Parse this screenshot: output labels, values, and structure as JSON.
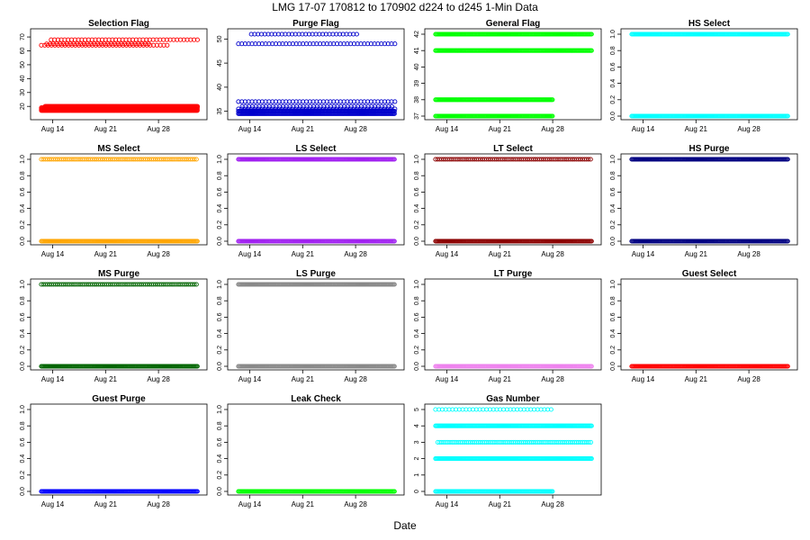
{
  "title": "LMG   17-07    170812 to 170902    d224 to d245   1-Min Data",
  "xlabel": "Date",
  "chart_data": [
    {
      "type": "scatter",
      "title": "Selection Flag",
      "color": "#ff0000",
      "ylim": [
        13,
        72
      ],
      "yticks": [
        20,
        30,
        40,
        50,
        60,
        70
      ],
      "ytick_labels": [
        "20",
        "30",
        "40",
        "50",
        "60",
        "70"
      ],
      "levels": [
        {
          "y": 17,
          "x_start": 12.5,
          "x_end": 33.2,
          "density": "dense"
        },
        {
          "y": 18,
          "x_start": 12.5,
          "x_end": 33.2,
          "density": "dense"
        },
        {
          "y": 19,
          "x_start": 12.5,
          "x_end": 33.2,
          "density": "dense"
        },
        {
          "y": 20,
          "x_start": 13,
          "x_end": 33.2,
          "density": "dense"
        },
        {
          "y": 64,
          "x_start": 12.5,
          "x_end": 29.5,
          "density": "sparse"
        },
        {
          "y": 65,
          "x_start": 13.2,
          "x_end": 27,
          "density": "sparse"
        },
        {
          "y": 68,
          "x_start": 13.8,
          "x_end": 33.2,
          "density": "sparse"
        }
      ],
      "x_ticks": [
        14,
        21,
        28
      ],
      "x_tick_labels": [
        "Aug 14",
        "Aug 21",
        "Aug 28"
      ]
    },
    {
      "type": "scatter",
      "title": "Purge Flag",
      "color": "#0000cc",
      "ylim": [
        34,
        51
      ],
      "yticks": [
        35,
        40,
        45,
        50
      ],
      "ytick_labels": [
        "35",
        "40",
        "45",
        "50"
      ],
      "levels": [
        {
          "y": 34.5,
          "x_start": 12.5,
          "x_end": 33.2,
          "density": "dense"
        },
        {
          "y": 35,
          "x_start": 12.5,
          "x_end": 33.2,
          "density": "dense"
        },
        {
          "y": 35.5,
          "x_start": 12.5,
          "x_end": 33.2,
          "density": "sparse"
        },
        {
          "y": 36,
          "x_start": 13,
          "x_end": 33.2,
          "density": "sparse"
        },
        {
          "y": 37,
          "x_start": 12.5,
          "x_end": 33.2,
          "density": "sparse"
        },
        {
          "y": 49,
          "x_start": 12.5,
          "x_end": 33.2,
          "density": "sparse"
        },
        {
          "y": 51,
          "x_start": 14.2,
          "x_end": 28.2,
          "density": "sparse"
        }
      ],
      "x_ticks": [
        14,
        21,
        28
      ],
      "x_tick_labels": [
        "Aug 14",
        "Aug 21",
        "Aug 28"
      ]
    },
    {
      "type": "scatter",
      "title": "General Flag",
      "color": "#00ff00",
      "ylim": [
        37,
        42
      ],
      "yticks": [
        37,
        38,
        39,
        40,
        41,
        42
      ],
      "ytick_labels": [
        "37",
        "38",
        "39",
        "40",
        "41",
        "42"
      ],
      "levels": [
        {
          "y": 37,
          "x_start": 12.5,
          "x_end": 28,
          "density": "dense"
        },
        {
          "y": 38,
          "x_start": 12.5,
          "x_end": 28,
          "density": "dense"
        },
        {
          "y": 41,
          "x_start": 12.5,
          "x_end": 33.2,
          "density": "dense"
        },
        {
          "y": 42,
          "x_start": 12.5,
          "x_end": 33.2,
          "density": "dense"
        }
      ],
      "x_ticks": [
        14,
        21,
        28
      ],
      "x_tick_labels": [
        "Aug 14",
        "Aug 21",
        "Aug 28"
      ]
    },
    {
      "type": "scatter",
      "title": "HS Select",
      "color": "#00ffff",
      "ylim": [
        0,
        1
      ],
      "yticks": [
        0,
        0.2,
        0.4,
        0.6,
        0.8,
        1.0
      ],
      "ytick_labels": [
        "0.0",
        "0.2",
        "0.4",
        "0.6",
        "0.8",
        "1.0"
      ],
      "levels": [
        {
          "y": 0,
          "x_start": 12.5,
          "x_end": 33.2,
          "density": "dense"
        },
        {
          "y": 1,
          "x_start": 12.5,
          "x_end": 33.2,
          "density": "dense"
        }
      ],
      "x_ticks": [
        14,
        21,
        28
      ],
      "x_tick_labels": [
        "Aug 14",
        "Aug 21",
        "Aug 28"
      ]
    },
    {
      "type": "scatter",
      "title": "MS Select",
      "color": "#ffa500",
      "ylim": [
        0,
        1
      ],
      "yticks": [
        0,
        0.2,
        0.4,
        0.6,
        0.8,
        1.0
      ],
      "ytick_labels": [
        "0.0",
        "0.2",
        "0.4",
        "0.6",
        "0.8",
        "1.0"
      ],
      "levels": [
        {
          "y": 0,
          "x_start": 12.5,
          "x_end": 33.2,
          "density": "dense"
        },
        {
          "y": 1,
          "x_start": 12.5,
          "x_end": 33.2,
          "density": "medium"
        }
      ],
      "x_ticks": [
        14,
        21,
        28
      ],
      "x_tick_labels": [
        "Aug 14",
        "Aug 21",
        "Aug 28"
      ]
    },
    {
      "type": "scatter",
      "title": "LS Select",
      "color": "#a020f0",
      "ylim": [
        0,
        1
      ],
      "yticks": [
        0,
        0.2,
        0.4,
        0.6,
        0.8,
        1.0
      ],
      "ytick_labels": [
        "0.0",
        "0.2",
        "0.4",
        "0.6",
        "0.8",
        "1.0"
      ],
      "levels": [
        {
          "y": 0,
          "x_start": 12.5,
          "x_end": 33.2,
          "density": "dense"
        },
        {
          "y": 1,
          "x_start": 12.5,
          "x_end": 33.2,
          "density": "dense"
        }
      ],
      "x_ticks": [
        14,
        21,
        28
      ],
      "x_tick_labels": [
        "Aug 14",
        "Aug 21",
        "Aug 28"
      ]
    },
    {
      "type": "scatter",
      "title": "LT Select",
      "color": "#8b0000",
      "ylim": [
        0,
        1
      ],
      "yticks": [
        0,
        0.2,
        0.4,
        0.6,
        0.8,
        1.0
      ],
      "ytick_labels": [
        "0.0",
        "0.2",
        "0.4",
        "0.6",
        "0.8",
        "1.0"
      ],
      "levels": [
        {
          "y": 0,
          "x_start": 12.5,
          "x_end": 33.2,
          "density": "dense"
        },
        {
          "y": 1,
          "x_start": 12.5,
          "x_end": 33.2,
          "density": "medium"
        }
      ],
      "x_ticks": [
        14,
        21,
        28
      ],
      "x_tick_labels": [
        "Aug 14",
        "Aug 21",
        "Aug 28"
      ]
    },
    {
      "type": "scatter",
      "title": "HS Purge",
      "color": "#000080",
      "ylim": [
        0,
        1
      ],
      "yticks": [
        0,
        0.2,
        0.4,
        0.6,
        0.8,
        1.0
      ],
      "ytick_labels": [
        "0.0",
        "0.2",
        "0.4",
        "0.6",
        "0.8",
        "1.0"
      ],
      "levels": [
        {
          "y": 0,
          "x_start": 12.5,
          "x_end": 33.2,
          "density": "dense"
        },
        {
          "y": 1,
          "x_start": 12.5,
          "x_end": 33.2,
          "density": "dense"
        }
      ],
      "x_ticks": [
        14,
        21,
        28
      ],
      "x_tick_labels": [
        "Aug 14",
        "Aug 21",
        "Aug 28"
      ]
    },
    {
      "type": "scatter",
      "title": "MS Purge",
      "color": "#006400",
      "ylim": [
        0,
        1
      ],
      "yticks": [
        0,
        0.2,
        0.4,
        0.6,
        0.8,
        1.0
      ],
      "ytick_labels": [
        "0.0",
        "0.2",
        "0.4",
        "0.6",
        "0.8",
        "1.0"
      ],
      "levels": [
        {
          "y": 0,
          "x_start": 12.5,
          "x_end": 33.2,
          "density": "dense"
        },
        {
          "y": 1,
          "x_start": 12.5,
          "x_end": 33.2,
          "density": "medium"
        }
      ],
      "x_ticks": [
        14,
        21,
        28
      ],
      "x_tick_labels": [
        "Aug 14",
        "Aug 21",
        "Aug 28"
      ]
    },
    {
      "type": "scatter",
      "title": "LS Purge",
      "color": "#888888",
      "ylim": [
        0,
        1
      ],
      "yticks": [
        0,
        0.2,
        0.4,
        0.6,
        0.8,
        1.0
      ],
      "ytick_labels": [
        "0.0",
        "0.2",
        "0.4",
        "0.6",
        "0.8",
        "1.0"
      ],
      "levels": [
        {
          "y": 0,
          "x_start": 12.5,
          "x_end": 33.2,
          "density": "dense"
        },
        {
          "y": 1,
          "x_start": 12.5,
          "x_end": 33.2,
          "density": "dense"
        }
      ],
      "x_ticks": [
        14,
        21,
        28
      ],
      "x_tick_labels": [
        "Aug 14",
        "Aug 21",
        "Aug 28"
      ]
    },
    {
      "type": "scatter",
      "title": "LT Purge",
      "color": "#ee82ee",
      "ylim": [
        0,
        1
      ],
      "yticks": [
        0,
        0.2,
        0.4,
        0.6,
        0.8,
        1.0
      ],
      "ytick_labels": [
        "0.0",
        "0.2",
        "0.4",
        "0.6",
        "0.8",
        "1.0"
      ],
      "levels": [
        {
          "y": 0,
          "x_start": 12.5,
          "x_end": 33.2,
          "density": "dense"
        }
      ],
      "x_ticks": [
        14,
        21,
        28
      ],
      "x_tick_labels": [
        "Aug 14",
        "Aug 21",
        "Aug 28"
      ]
    },
    {
      "type": "scatter",
      "title": "Guest Select",
      "color": "#ff0000",
      "ylim": [
        0,
        1
      ],
      "yticks": [
        0,
        0.2,
        0.4,
        0.6,
        0.8,
        1.0
      ],
      "ytick_labels": [
        "0.0",
        "0.2",
        "0.4",
        "0.6",
        "0.8",
        "1.0"
      ],
      "levels": [
        {
          "y": 0,
          "x_start": 12.5,
          "x_end": 33.2,
          "density": "dense"
        }
      ],
      "x_ticks": [
        14,
        21,
        28
      ],
      "x_tick_labels": [
        "Aug 14",
        "Aug 21",
        "Aug 28"
      ]
    },
    {
      "type": "scatter",
      "title": "Guest Purge",
      "color": "#0000ff",
      "ylim": [
        0,
        1
      ],
      "yticks": [
        0,
        0.2,
        0.4,
        0.6,
        0.8,
        1.0
      ],
      "ytick_labels": [
        "0.0",
        "0.2",
        "0.4",
        "0.6",
        "0.8",
        "1.0"
      ],
      "levels": [
        {
          "y": 0,
          "x_start": 12.5,
          "x_end": 33.2,
          "density": "dense"
        }
      ],
      "x_ticks": [
        14,
        21,
        28
      ],
      "x_tick_labels": [
        "Aug 14",
        "Aug 21",
        "Aug 28"
      ]
    },
    {
      "type": "scatter",
      "title": "Leak Check",
      "color": "#00ff00",
      "ylim": [
        0,
        1
      ],
      "yticks": [
        0,
        0.2,
        0.4,
        0.6,
        0.8,
        1.0
      ],
      "ytick_labels": [
        "0.0",
        "0.2",
        "0.4",
        "0.6",
        "0.8",
        "1.0"
      ],
      "levels": [
        {
          "y": 0,
          "x_start": 12.5,
          "x_end": 33.2,
          "density": "dense"
        }
      ],
      "x_ticks": [
        14,
        21,
        28
      ],
      "x_tick_labels": [
        "Aug 14",
        "Aug 21",
        "Aug 28"
      ]
    },
    {
      "type": "scatter",
      "title": "Gas Number",
      "color": "#00ffff",
      "ylim": [
        0,
        5
      ],
      "yticks": [
        0,
        1,
        2,
        3,
        4,
        5
      ],
      "ytick_labels": [
        "0",
        "1",
        "2",
        "3",
        "4",
        "5"
      ],
      "levels": [
        {
          "y": 0,
          "x_start": 12.5,
          "x_end": 28,
          "density": "dense"
        },
        {
          "y": 2,
          "x_start": 12.5,
          "x_end": 33.2,
          "density": "dense"
        },
        {
          "y": 3,
          "x_start": 12.8,
          "x_end": 33.2,
          "density": "medium"
        },
        {
          "y": 4,
          "x_start": 12.5,
          "x_end": 33.2,
          "density": "dense"
        },
        {
          "y": 5,
          "x_start": 12.5,
          "x_end": 28,
          "density": "sparse"
        }
      ],
      "x_ticks": [
        14,
        21,
        28
      ],
      "x_tick_labels": [
        "Aug 14",
        "Aug 21",
        "Aug 28"
      ]
    }
  ]
}
